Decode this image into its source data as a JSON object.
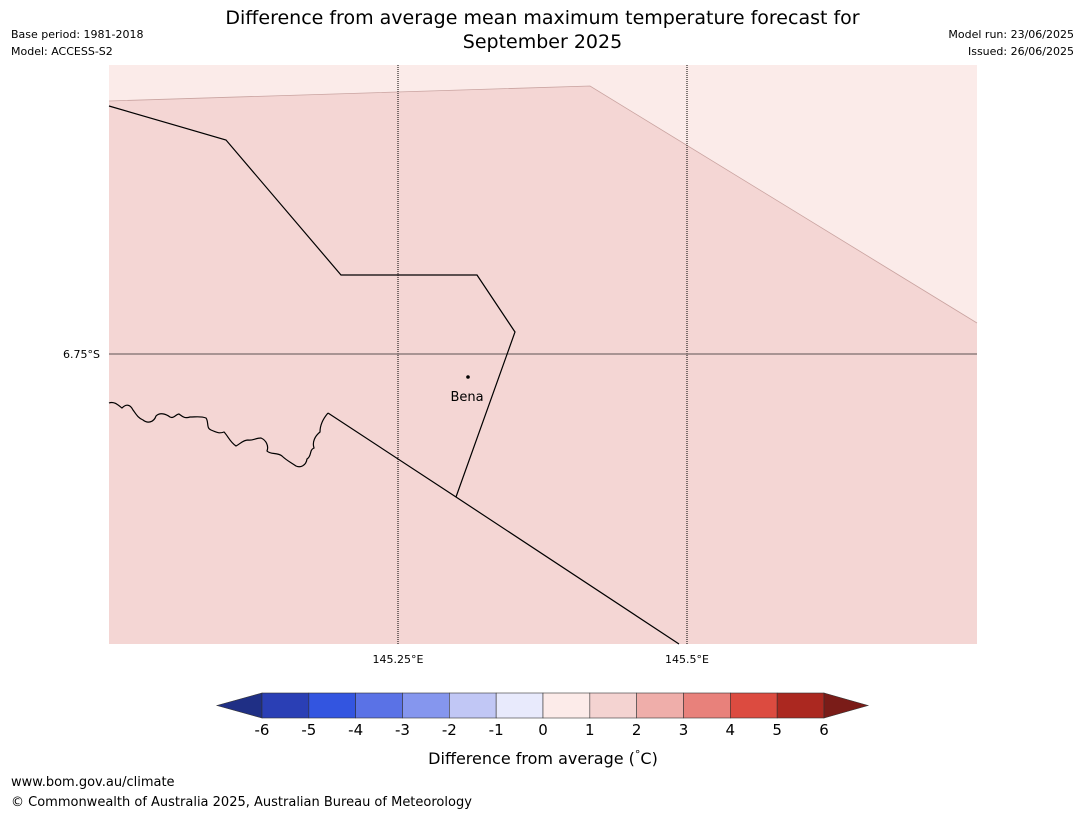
{
  "header": {
    "title_line1": "Difference from average mean maximum temperature forecast for",
    "title_line2": "September 2025",
    "base_period": "Base period: 1981-2018",
    "model": "Model: ACCESS-S2",
    "model_run": "Model run: 23/06/2025",
    "issued": "Issued: 26/06/2025"
  },
  "map": {
    "place_label": "Bena",
    "lat_label": "6.75°S",
    "lon_labels": [
      "145.25°E",
      "145.5°E"
    ],
    "region_colors": {
      "main": "#f4d6d4",
      "light": "#fbebe9"
    }
  },
  "legend": {
    "title": "Difference from average (°C)",
    "title_prefix": "Difference from average (",
    "title_unit": "C)",
    "ticks": [
      "-6",
      "-5",
      "-4",
      "-3",
      "-2",
      "-1",
      "0",
      "1",
      "2",
      "3",
      "4",
      "5",
      "6"
    ],
    "colors": {
      "under": "#1f2f85",
      "bins": [
        "#2a3fb5",
        "#3355e0",
        "#5a72e6",
        "#8596ee",
        "#c1c7f5",
        "#e8eafc",
        "#fcebe9",
        "#f4d3d1",
        "#efaeaa",
        "#e8817b",
        "#dc4b40",
        "#ab2820"
      ],
      "over": "#7a1c18"
    }
  },
  "footer": {
    "url": "www.bom.gov.au/climate",
    "copyright": "© Commonwealth of Australia 2025, Australian Bureau of Meteorology"
  }
}
